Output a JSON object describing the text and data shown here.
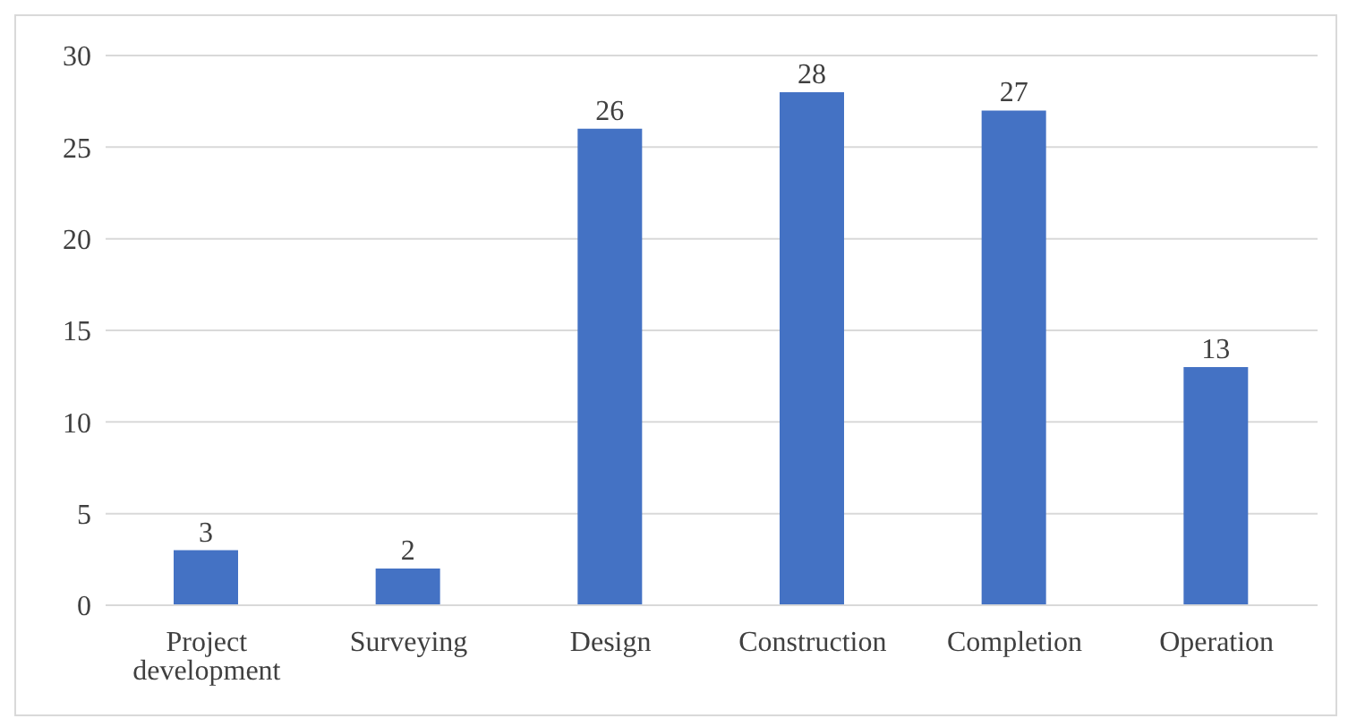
{
  "chart_data": {
    "type": "bar",
    "categories": [
      "Project development",
      "Surveying",
      "Design",
      "Construction",
      "Completion",
      "Operation"
    ],
    "values": [
      3,
      2,
      26,
      28,
      27,
      13
    ],
    "color": "#4472c4",
    "ylim": [
      0,
      30
    ],
    "yticks": [
      0,
      5,
      10,
      15,
      20,
      25,
      30
    ],
    "grid": "y",
    "data_labels": true,
    "legend": false
  }
}
